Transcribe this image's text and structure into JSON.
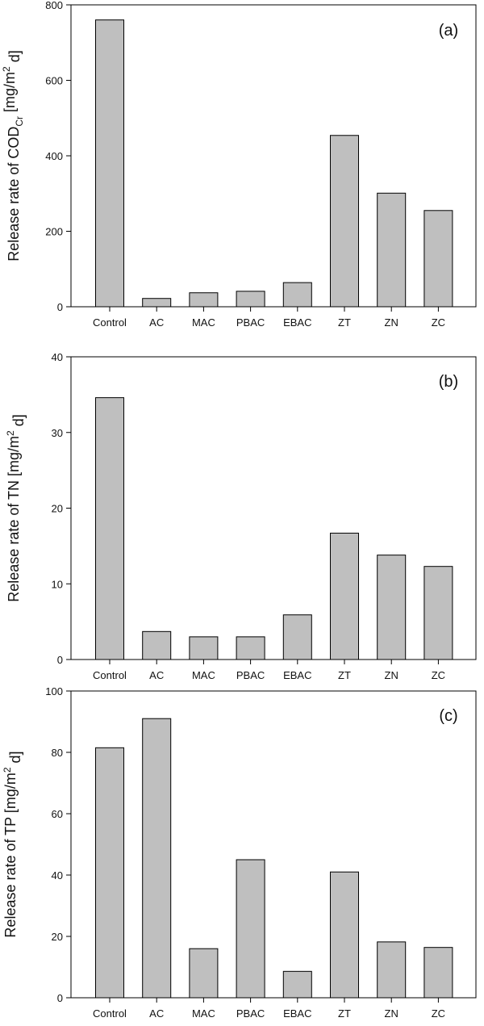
{
  "chart_data": [
    {
      "type": "bar",
      "panel_label": "(a)",
      "ylabel_main": "Release rate of COD",
      "ylabel_sub": "Cr",
      "ylabel_rest": " [mg/m",
      "ylabel_sup": "2",
      "ylabel_end": " d]",
      "categories": [
        "Control",
        "AC",
        "MAC",
        "PBAC",
        "EBAC",
        "ZT",
        "ZN",
        "ZC"
      ],
      "values": [
        760,
        22,
        37,
        41,
        64,
        454,
        301,
        255
      ],
      "ylim": [
        0,
        800
      ],
      "yticks": [
        0,
        200,
        400,
        600,
        800
      ],
      "grid": false
    },
    {
      "type": "bar",
      "panel_label": "(b)",
      "ylabel_main": "Release rate of TN [mg/m",
      "ylabel_sub": "",
      "ylabel_rest": "",
      "ylabel_sup": "2",
      "ylabel_end": " d]",
      "categories": [
        "Control",
        "AC",
        "MAC",
        "PBAC",
        "EBAC",
        "ZT",
        "ZN",
        "ZC"
      ],
      "values": [
        34.6,
        3.7,
        3.0,
        3.0,
        5.9,
        16.7,
        13.8,
        12.3
      ],
      "ylim": [
        0,
        40
      ],
      "yticks": [
        0,
        10,
        20,
        30,
        40
      ],
      "grid": false
    },
    {
      "type": "bar",
      "panel_label": "(c)",
      "ylabel_main": "Release rate of TP [mg/m",
      "ylabel_sub": "",
      "ylabel_rest": "",
      "ylabel_sup": "2",
      "ylabel_end": " d]",
      "categories": [
        "Control",
        "AC",
        "MAC",
        "PBAC",
        "EBAC",
        "ZT",
        "ZN",
        "ZC"
      ],
      "values": [
        81.5,
        91,
        16,
        45,
        8.6,
        41,
        18.2,
        16.4
      ],
      "ylim": [
        0,
        100
      ],
      "yticks": [
        0,
        20,
        40,
        60,
        80,
        100
      ],
      "grid": false
    }
  ]
}
